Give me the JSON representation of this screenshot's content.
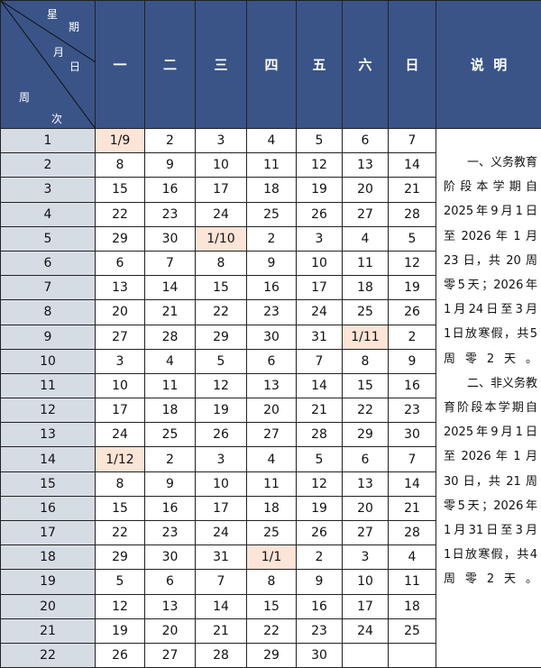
{
  "header": {
    "corner": {
      "week_top": "星",
      "week_bottom": "期",
      "month": "月",
      "day": "日",
      "zhou": "周",
      "ci": "次"
    },
    "days": [
      "一",
      "二",
      "三",
      "四",
      "五",
      "六",
      "日"
    ],
    "note": "说  明"
  },
  "colors": {
    "header_bg": "#3a5488",
    "week_bg": "#d6dce4",
    "highlight_bg": "#fce4d6"
  },
  "rows": [
    {
      "week": "1",
      "days": [
        "1/9",
        "2",
        "3",
        "4",
        "5",
        "6",
        "7"
      ],
      "hl": 0
    },
    {
      "week": "2",
      "days": [
        "8",
        "9",
        "10",
        "11",
        "12",
        "13",
        "14"
      ]
    },
    {
      "week": "3",
      "days": [
        "15",
        "16",
        "17",
        "18",
        "19",
        "20",
        "21"
      ]
    },
    {
      "week": "4",
      "days": [
        "22",
        "23",
        "24",
        "25",
        "26",
        "27",
        "28"
      ]
    },
    {
      "week": "5",
      "days": [
        "29",
        "30",
        "1/10",
        "2",
        "3",
        "4",
        "5"
      ],
      "hl": 2
    },
    {
      "week": "6",
      "days": [
        "6",
        "7",
        "8",
        "9",
        "10",
        "11",
        "12"
      ]
    },
    {
      "week": "7",
      "days": [
        "13",
        "14",
        "15",
        "16",
        "17",
        "18",
        "19"
      ]
    },
    {
      "week": "8",
      "days": [
        "20",
        "21",
        "22",
        "23",
        "24",
        "25",
        "26"
      ]
    },
    {
      "week": "9",
      "days": [
        "27",
        "28",
        "29",
        "30",
        "31",
        "1/11",
        "2"
      ],
      "hl": 5
    },
    {
      "week": "10",
      "days": [
        "3",
        "4",
        "5",
        "6",
        "7",
        "8",
        "9"
      ]
    },
    {
      "week": "11",
      "days": [
        "10",
        "11",
        "12",
        "13",
        "14",
        "15",
        "16"
      ]
    },
    {
      "week": "12",
      "days": [
        "17",
        "18",
        "19",
        "20",
        "21",
        "22",
        "23"
      ]
    },
    {
      "week": "13",
      "days": [
        "24",
        "25",
        "26",
        "27",
        "28",
        "29",
        "30"
      ]
    },
    {
      "week": "14",
      "days": [
        "1/12",
        "2",
        "3",
        "4",
        "5",
        "6",
        "7"
      ],
      "hl": 0
    },
    {
      "week": "15",
      "days": [
        "8",
        "9",
        "10",
        "11",
        "12",
        "13",
        "14"
      ]
    },
    {
      "week": "16",
      "days": [
        "15",
        "16",
        "17",
        "18",
        "19",
        "20",
        "21"
      ]
    },
    {
      "week": "17",
      "days": [
        "22",
        "23",
        "24",
        "25",
        "26",
        "27",
        "28"
      ]
    },
    {
      "week": "18",
      "days": [
        "29",
        "30",
        "31",
        "1/1",
        "2",
        "3",
        "4"
      ],
      "hl": 3
    },
    {
      "week": "19",
      "days": [
        "5",
        "6",
        "7",
        "8",
        "9",
        "10",
        "11"
      ]
    },
    {
      "week": "20",
      "days": [
        "12",
        "13",
        "14",
        "15",
        "16",
        "17",
        "18"
      ]
    },
    {
      "week": "21",
      "days": [
        "19",
        "20",
        "21",
        "22",
        "23",
        "24",
        "25"
      ]
    },
    {
      "week": "22",
      "days": [
        "26",
        "27",
        "28",
        "29",
        "30",
        "",
        ""
      ]
    }
  ],
  "note_lines": [
    "一、义务教育",
    "阶段本学期自",
    "2025年9月1日",
    "至 2026 年 1 月",
    "23 日，共 20 周",
    "零5天；2026年",
    "1月24日至3月",
    "1日放寒假，共5",
    "周零2天。",
    "二、非义务教",
    "育阶段本学期自",
    "2025年9月1日",
    "至 2026 年 1 月",
    "30 日，共 21 周",
    "零5天；2026年",
    "1月31日至3月",
    "1日放寒假，共4",
    "周零2天。"
  ]
}
